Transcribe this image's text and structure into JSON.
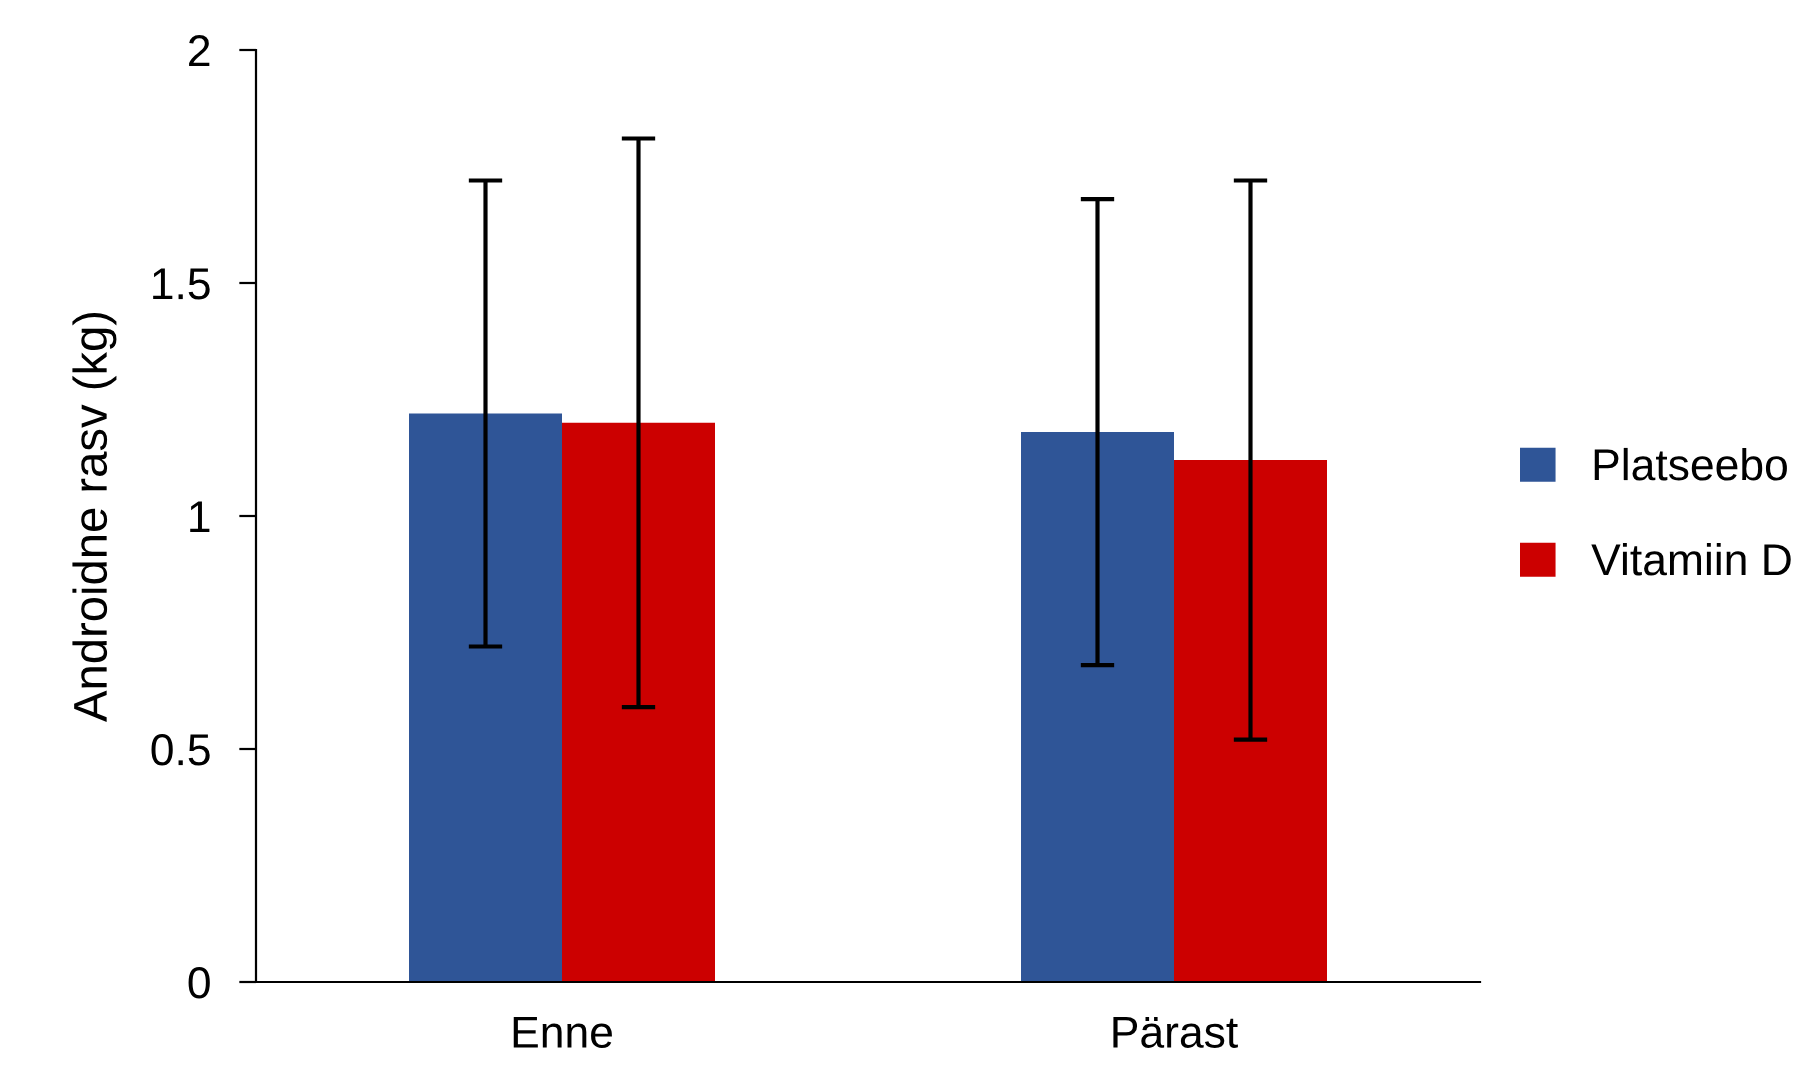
{
  "chart_data": {
    "type": "bar",
    "ylabel": "Androidne rasv (kg)",
    "categories": [
      "Enne",
      "Pärast"
    ],
    "series": [
      {
        "name": "Platseebo",
        "color": "#2f5597",
        "values": [
          1.22,
          1.18
        ],
        "errors": [
          0.5,
          0.5
        ]
      },
      {
        "name": "Vitamiin D",
        "color": "#cc0000",
        "values": [
          1.2,
          1.12
        ],
        "errors": [
          0.61,
          0.6
        ]
      }
    ],
    "ylim": [
      0,
      2
    ],
    "yticks": [
      0,
      0.5,
      1,
      1.5,
      2
    ],
    "grid": false,
    "legend": "right"
  }
}
